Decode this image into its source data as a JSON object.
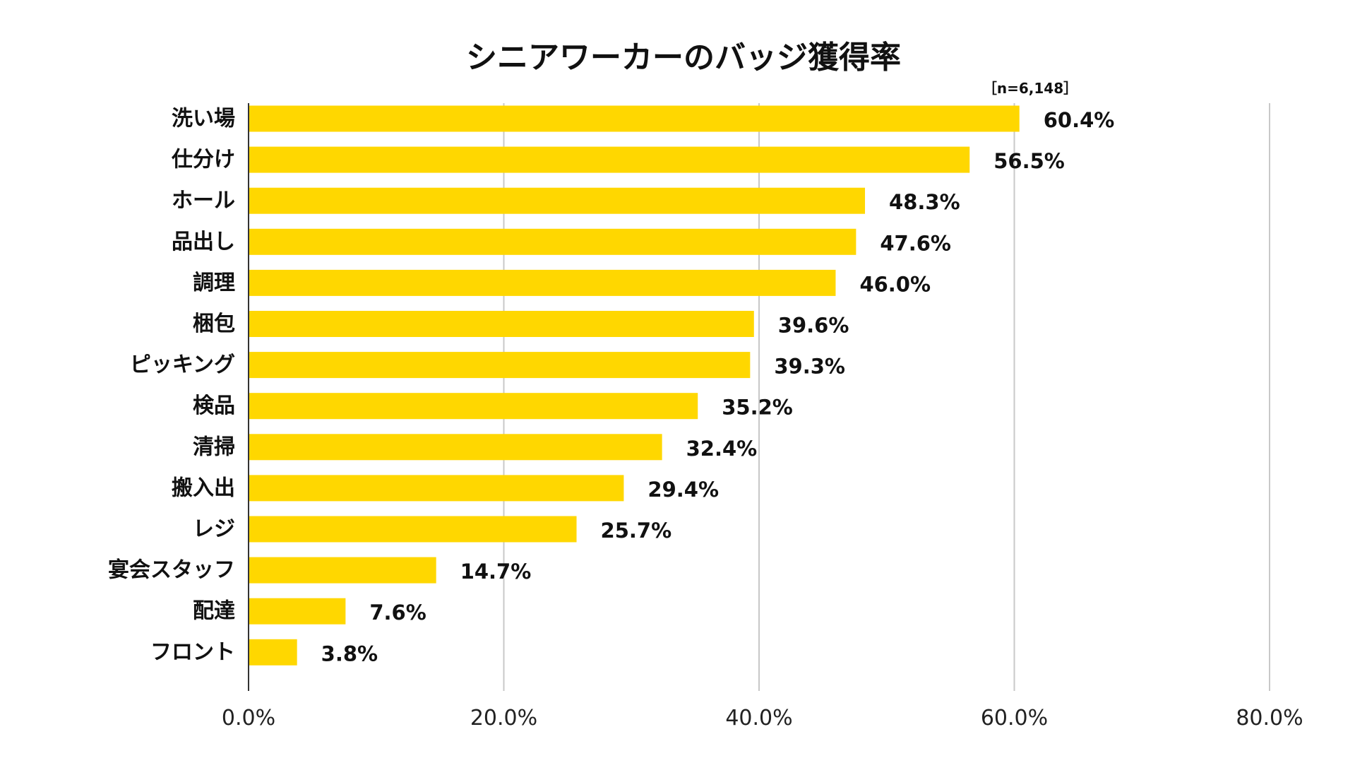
{
  "chart_data": {
    "type": "bar",
    "orientation": "horizontal",
    "title": "シニアワーカーのバッジ獲得率",
    "sample_note": "［n=6,148］",
    "categories": [
      "洗い場",
      "仕分け",
      "ホール",
      "品出し",
      "調理",
      "梱包",
      "ピッキング",
      "検品",
      "清掃",
      "搬入出",
      "レジ",
      "宴会スタッフ",
      "配達",
      "フロント"
    ],
    "values": [
      60.4,
      56.5,
      48.3,
      47.6,
      46.0,
      39.6,
      39.3,
      35.2,
      32.4,
      29.4,
      25.7,
      14.7,
      7.6,
      3.8
    ],
    "value_labels": [
      "60.4%",
      "56.5%",
      "48.3%",
      "47.6%",
      "46.0%",
      "39.6%",
      "39.3%",
      "35.2%",
      "32.4%",
      "29.4%",
      "25.7%",
      "14.7%",
      "7.6%",
      "3.8%"
    ],
    "xlim": [
      0,
      80
    ],
    "x_ticks": [
      0,
      20,
      40,
      60,
      80
    ],
    "x_tick_labels": [
      "0.0%",
      "20.0%",
      "40.0%",
      "60.0%",
      "80.0%"
    ],
    "grid": true,
    "legend": "none",
    "bar_color": "#FFD700",
    "grid_color": "#c8c8c8",
    "axis_color": "#333333"
  }
}
